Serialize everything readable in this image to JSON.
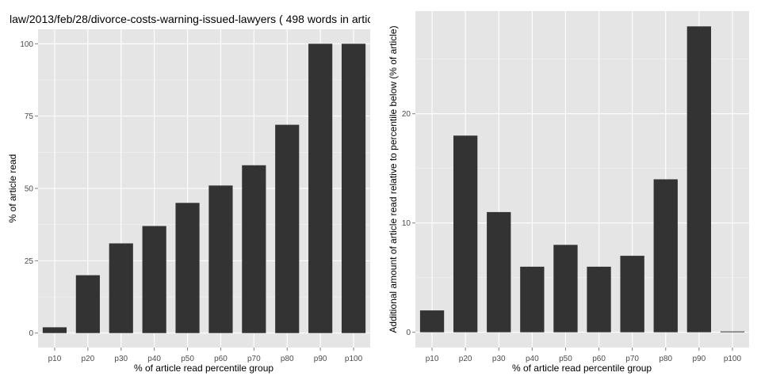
{
  "colors": {
    "panel_background": "#e5e5e5",
    "grid_major": "#ffffff",
    "grid_minor": "#f2f2f2",
    "bar_fill": "#333333",
    "tick_text": "#4d4d4d"
  },
  "chart_data": [
    {
      "type": "bar",
      "title": "law/2013/feb/28/divorce-costs-warning-issued-lawyers ( 498 words in artic",
      "xlabel": "% of article read percentile group",
      "ylabel": "% of article read",
      "categories": [
        "p10",
        "p20",
        "p30",
        "p40",
        "p50",
        "p60",
        "p70",
        "p80",
        "p90",
        "p100"
      ],
      "values": [
        2,
        20,
        31,
        37,
        45,
        51,
        58,
        72,
        100,
        100
      ],
      "ylim": [
        -5,
        105
      ],
      "yticks": [
        0,
        25,
        50,
        75,
        100
      ],
      "ytick_labels": [
        "0",
        "25",
        "50",
        "75",
        "100"
      ],
      "grid": true,
      "legend": "none"
    },
    {
      "type": "bar",
      "title": "",
      "xlabel": "% of article read percentile group",
      "ylabel": "Additional amount of article read relative to percentile below (% of article)",
      "categories": [
        "p10",
        "p20",
        "p30",
        "p40",
        "p50",
        "p60",
        "p70",
        "p80",
        "p90",
        "p100"
      ],
      "values": [
        2,
        18,
        11,
        6,
        8,
        6,
        7,
        14,
        28,
        0
      ],
      "ylim": [
        -1.4,
        29.4
      ],
      "yticks": [
        0,
        10,
        20
      ],
      "ytick_labels": [
        "0",
        "10",
        "20"
      ],
      "grid": true,
      "legend": "none"
    }
  ]
}
